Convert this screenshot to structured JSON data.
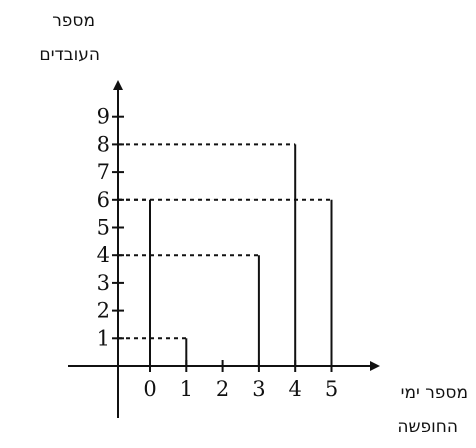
{
  "chart_data": {
    "type": "bar",
    "title": "",
    "ylabel_lines": [
      "מספר",
      "העובדים"
    ],
    "xlabel_lines": [
      "מספר ימי",
      "החופשה"
    ],
    "x_ticks": [
      "0",
      "1",
      "2",
      "3",
      "4",
      "5"
    ],
    "y_ticks": [
      "1",
      "2",
      "3",
      "4",
      "5",
      "6",
      "7",
      "8",
      "9"
    ],
    "xlim": [
      0,
      5
    ],
    "ylim": [
      0,
      9
    ],
    "categories": [
      0,
      1,
      2,
      3,
      4,
      5
    ],
    "values": [
      6,
      1,
      0,
      4,
      8,
      6
    ],
    "grid": false,
    "guide_lines": "dashed"
  }
}
